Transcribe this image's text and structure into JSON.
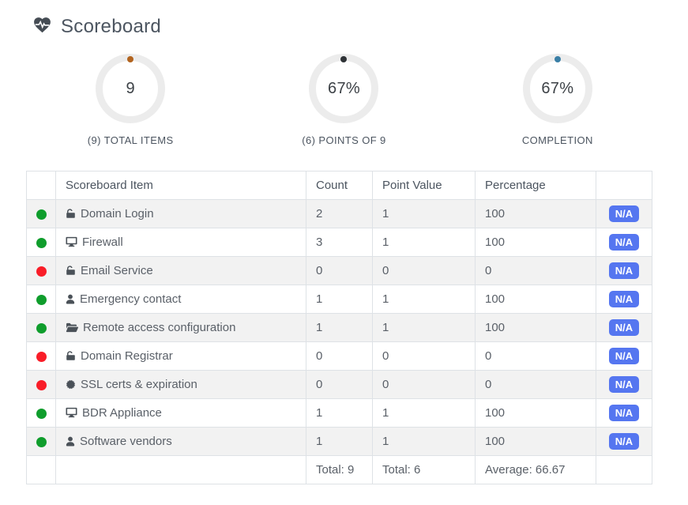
{
  "page": {
    "title": "Scoreboard"
  },
  "gauges": [
    {
      "value": "9",
      "label": "(9) TOTAL ITEMS",
      "dot_color": "#b2641f"
    },
    {
      "value": "67%",
      "label": "(6) POINTS OF 9",
      "dot_color": "#2f3337"
    },
    {
      "value": "67%",
      "label": "COMPLETION",
      "dot_color": "#3a7fa6"
    }
  ],
  "table": {
    "headers": {
      "item": "Scoreboard Item",
      "count": "Count",
      "point_value": "Point Value",
      "percentage": "Percentage"
    },
    "rows": [
      {
        "status": "green",
        "icon": "unlock-icon",
        "item": "Domain Login",
        "count": "2",
        "point_value": "1",
        "percentage": "100",
        "badge": "N/A"
      },
      {
        "status": "green",
        "icon": "desktop-icon",
        "item": "Firewall",
        "count": "3",
        "point_value": "1",
        "percentage": "100",
        "badge": "N/A"
      },
      {
        "status": "red",
        "icon": "unlock-icon",
        "item": "Email Service",
        "count": "0",
        "point_value": "0",
        "percentage": "0",
        "badge": "N/A"
      },
      {
        "status": "green",
        "icon": "user-icon",
        "item": "Emergency contact",
        "count": "1",
        "point_value": "1",
        "percentage": "100",
        "badge": "N/A"
      },
      {
        "status": "green",
        "icon": "folder-open-icon",
        "item": "Remote access configuration",
        "count": "1",
        "point_value": "1",
        "percentage": "100",
        "badge": "N/A"
      },
      {
        "status": "red",
        "icon": "unlock-icon",
        "item": "Domain Registrar",
        "count": "0",
        "point_value": "0",
        "percentage": "0",
        "badge": "N/A"
      },
      {
        "status": "red",
        "icon": "certificate-icon",
        "item": "SSL certs & expiration",
        "count": "0",
        "point_value": "0",
        "percentage": "0",
        "badge": "N/A"
      },
      {
        "status": "green",
        "icon": "desktop-icon",
        "item": "BDR Appliance",
        "count": "1",
        "point_value": "1",
        "percentage": "100",
        "badge": "N/A"
      },
      {
        "status": "green",
        "icon": "user-icon",
        "item": "Software vendors",
        "count": "1",
        "point_value": "1",
        "percentage": "100",
        "badge": "N/A"
      }
    ],
    "footer": {
      "count_total": "Total: 9",
      "point_total": "Total: 6",
      "percentage_avg": "Average: 66.67"
    }
  },
  "colors": {
    "status_green": "#0f9d2c",
    "status_red": "#f91d28",
    "badge_blue": "#5576f0",
    "ring_gray": "#ececec"
  }
}
